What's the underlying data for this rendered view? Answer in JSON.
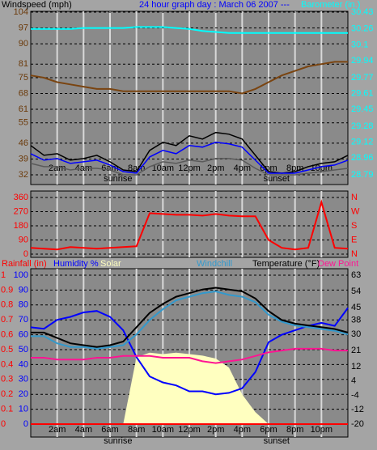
{
  "chart_data": [
    {
      "type": "line",
      "title": "24 hour graph day : March 06 2007  ---",
      "title_color": "#0000ff",
      "x": [
        0,
        1,
        2,
        3,
        4,
        5,
        6,
        7,
        8,
        9,
        10,
        11,
        12,
        13,
        14,
        15,
        16,
        17,
        18,
        19,
        20,
        21,
        22,
        23,
        24
      ],
      "xlim": [
        0,
        24
      ],
      "xticks": [
        {
          "value": 2,
          "label": "2am"
        },
        {
          "value": 4,
          "label": "4am"
        },
        {
          "value": 6,
          "label": "6am"
        },
        {
          "value": 8,
          "label": "8am"
        },
        {
          "value": 10,
          "label": "10am"
        },
        {
          "value": 12,
          "label": "12pm"
        },
        {
          "value": 14,
          "label": "2pm"
        },
        {
          "value": 16,
          "label": "4pm"
        },
        {
          "value": 18,
          "label": "6pm"
        },
        {
          "value": 20,
          "label": "8pm"
        },
        {
          "value": 22,
          "label": "10pm"
        }
      ],
      "annotations": [
        {
          "text": "sunrise",
          "x": 6.6
        },
        {
          "text": "sunset",
          "x": 18.6
        }
      ],
      "ylim": [
        32,
        104
      ],
      "yticks": [
        32,
        39,
        46,
        55,
        61,
        68,
        75,
        81,
        90,
        97,
        104
      ],
      "ytick_color": "#6b3a0a",
      "y2lim": [
        28.79,
        30.43
      ],
      "y2ticks": [
        28.79,
        28.96,
        29.12,
        29.28,
        29.45,
        29.61,
        29.77,
        29.94,
        30.1,
        30.26,
        30.43
      ],
      "y2tick_color": "#00ffff",
      "y3lim": [
        0,
        10
      ],
      "grid": true,
      "series": [
        {
          "name": "Windspeed (mph)",
          "color": "#000000",
          "axis": "y3",
          "values": [
            1.8,
            1.2,
            1.3,
            0.9,
            1.0,
            1.2,
            0.8,
            0.3,
            0.2,
            1.5,
            2.0,
            1.8,
            2.4,
            2.2,
            2.6,
            2.5,
            2.2,
            1.2,
            0.2,
            0.1,
            0.2,
            0.5,
            0.7,
            0.8,
            1.2
          ]
        },
        {
          "color": "#0000ff",
          "axis": "y3",
          "values": [
            1.3,
            0.9,
            1.0,
            0.7,
            0.8,
            0.9,
            0.6,
            0.2,
            0.1,
            1.1,
            1.5,
            1.3,
            1.8,
            1.7,
            2.0,
            1.9,
            1.7,
            0.9,
            0.1,
            0.1,
            0.1,
            0.3,
            0.5,
            0.6,
            0.9
          ]
        },
        {
          "color": "#5a5a5a",
          "axis": "y3",
          "values": [
            0.7,
            0.5,
            0.5,
            0.3,
            0.4,
            0.4,
            0.3,
            0.0,
            0.0,
            0.5,
            0.8,
            0.7,
            0.9,
            0.8,
            1.0,
            1.0,
            0.9,
            0.4,
            0.0,
            0.0,
            0.0,
            0.1,
            0.2,
            0.3,
            0.4
          ]
        },
        {
          "color": "#7a4410",
          "values": [
            76,
            75,
            73,
            72,
            71,
            70,
            70,
            69,
            69,
            69,
            69,
            69,
            69,
            69,
            69,
            69,
            68,
            70,
            73,
            76,
            78,
            80,
            81,
            82,
            82
          ]
        },
        {
          "name": "Barometer (in.)",
          "color": "#00ffff",
          "axis": "y2",
          "values": [
            30.26,
            30.26,
            30.26,
            30.26,
            30.27,
            30.27,
            30.27,
            30.27,
            30.28,
            30.28,
            30.28,
            30.27,
            30.26,
            30.24,
            30.23,
            30.22,
            30.22,
            30.22,
            30.22,
            30.22,
            30.22,
            30.22,
            30.22,
            30.22,
            30.22
          ]
        }
      ]
    },
    {
      "type": "line",
      "x": [
        0,
        1,
        2,
        3,
        4,
        5,
        6,
        7,
        8,
        9,
        10,
        11,
        12,
        13,
        14,
        15,
        16,
        17,
        18,
        19,
        20,
        21,
        22,
        23,
        24
      ],
      "xlim": [
        0,
        24
      ],
      "ylim": [
        0,
        360
      ],
      "yticks": [
        0,
        90,
        180,
        270,
        360
      ],
      "ytick_color": "#ff0000",
      "y2lim": [
        0,
        360
      ],
      "y2ticks": [
        {
          "value": 0,
          "label": "N"
        },
        {
          "value": 90,
          "label": "E"
        },
        {
          "value": 180,
          "label": "S"
        },
        {
          "value": 270,
          "label": "W"
        },
        {
          "value": 360,
          "label": "N"
        }
      ],
      "y2tick_color": "#ff0000",
      "grid": true,
      "series": [
        {
          "color": "#ff0000",
          "values": [
            40,
            35,
            30,
            45,
            40,
            35,
            40,
            45,
            50,
            260,
            255,
            250,
            250,
            245,
            255,
            245,
            240,
            240,
            90,
            40,
            30,
            40,
            330,
            40,
            35
          ]
        }
      ]
    },
    {
      "type": "line",
      "x": [
        0,
        1,
        2,
        3,
        4,
        5,
        6,
        7,
        8,
        9,
        10,
        11,
        12,
        13,
        14,
        15,
        16,
        17,
        18,
        19,
        20,
        21,
        22,
        23,
        24
      ],
      "xlim": [
        0,
        24
      ],
      "xticks": [
        {
          "value": 2,
          "label": "2am"
        },
        {
          "value": 4,
          "label": "4am"
        },
        {
          "value": 6,
          "label": "6am"
        },
        {
          "value": 8,
          "label": "8am"
        },
        {
          "value": 10,
          "label": "10am"
        },
        {
          "value": 12,
          "label": "12pm"
        },
        {
          "value": 14,
          "label": "2pm"
        },
        {
          "value": 16,
          "label": "4pm"
        },
        {
          "value": 18,
          "label": "6pm"
        },
        {
          "value": 20,
          "label": "8pm"
        },
        {
          "value": 22,
          "label": "10pm"
        }
      ],
      "annotations": [
        {
          "text": "sunrise",
          "x": 6.6
        },
        {
          "text": "sunset",
          "x": 18.6
        }
      ],
      "ylim": [
        0,
        100
      ],
      "yticks": [
        0,
        10,
        20,
        30,
        40,
        50,
        60,
        70,
        80,
        90,
        100
      ],
      "ytick_color": "#0000ff",
      "y2lim": [
        -20,
        63
      ],
      "y2ticks": [
        -20,
        -12,
        -4,
        4,
        12,
        21,
        30,
        38,
        45,
        54,
        63
      ],
      "y2tick_color": "#000000",
      "y3lim": [
        0,
        1
      ],
      "y3ticks": [
        0,
        0.1,
        0.2,
        0.3,
        0.4,
        0.5,
        0.6,
        0.7,
        0.8,
        0.9,
        1
      ],
      "y3tick_color": "#ff0000",
      "y4lim": [
        0,
        1000
      ],
      "grid": true,
      "series": [
        {
          "name": "Rainfall (in)",
          "color": "#ff0000",
          "axis": "y3",
          "values": [
            0,
            0,
            0,
            0,
            0,
            0,
            0,
            0,
            0,
            0,
            0,
            0,
            0,
            0,
            0,
            0,
            0,
            0,
            0,
            0,
            0,
            0,
            0,
            0,
            0
          ]
        },
        {
          "name": "Humidity %",
          "color": "#0000ff",
          "values": [
            65,
            64,
            70,
            72,
            75,
            76,
            72,
            63,
            45,
            32,
            28,
            26,
            22,
            22,
            20,
            21,
            24,
            35,
            55,
            60,
            63,
            66,
            68,
            66,
            78
          ]
        },
        {
          "name": "Solar",
          "color": "#ffffc0",
          "axis": "y4",
          "fill": true,
          "values": [
            0,
            0,
            0,
            0,
            0,
            0,
            0,
            0,
            450,
            480,
            470,
            480,
            470,
            460,
            440,
            380,
            200,
            80,
            0,
            0,
            0,
            0,
            0,
            0,
            0
          ]
        },
        {
          "name": "Windchill",
          "color": "#3399cc",
          "axis": "y2",
          "values": [
            29,
            29,
            25,
            23,
            23,
            22,
            23,
            24,
            30,
            38,
            44,
            49,
            51,
            53,
            54,
            52,
            51,
            48,
            41,
            37,
            35,
            34,
            33,
            32,
            30
          ]
        },
        {
          "name": "Temperature (°F)",
          "color": "#000000",
          "axis": "y2",
          "values": [
            31,
            31,
            28,
            25,
            24,
            23,
            24,
            26,
            34,
            42,
            47,
            51,
            53,
            55,
            56,
            55,
            54,
            50,
            43,
            38,
            36,
            35,
            34,
            33,
            31
          ]
        },
        {
          "name": "Dew Point",
          "color": "#ff1493",
          "axis": "y2",
          "values": [
            17,
            17,
            16,
            16,
            16,
            17,
            17,
            18,
            18,
            18,
            17,
            17,
            17,
            15,
            14,
            15,
            16,
            18,
            20,
            21,
            22,
            22,
            22,
            21,
            21
          ]
        }
      ]
    }
  ]
}
